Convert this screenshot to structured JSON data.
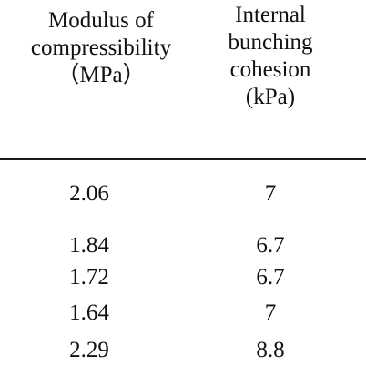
{
  "table": {
    "headers": [
      {
        "lines": [
          "Modulus of",
          "compressibility",
          "（MPa）"
        ]
      },
      {
        "lines": [
          "Internal",
          "bunching",
          "cohesion",
          "(kPa)"
        ]
      }
    ],
    "rows": [
      [
        "2.06",
        "7"
      ],
      [
        "1.84",
        "6.7"
      ],
      [
        "1.72",
        "6.7"
      ],
      [
        "1.64",
        "7"
      ],
      [
        "2.29",
        "8.8"
      ]
    ]
  }
}
